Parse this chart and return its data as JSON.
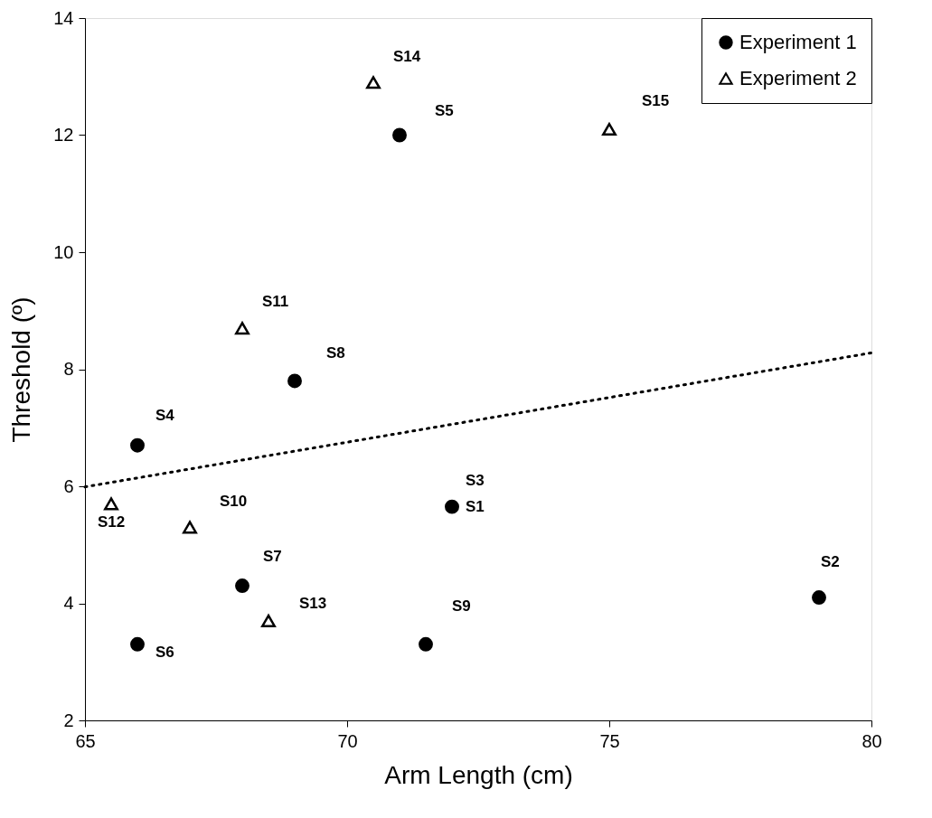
{
  "chart_data": {
    "type": "scatter",
    "xlabel": "Arm Length (cm)",
    "ylabel": "Threshold (º)",
    "xlim": [
      65,
      80
    ],
    "xticks": [
      65,
      70,
      75,
      80
    ],
    "ylim": [
      2,
      14
    ],
    "yticks": [
      2,
      4,
      6,
      8,
      10,
      12,
      14
    ],
    "grid": false,
    "legend": "top right",
    "series": [
      {
        "name": "Experiment 1",
        "color": "#000000",
        "marker": "circle",
        "x": [
          72,
          79,
          66,
          71,
          66,
          68,
          69,
          71.5
        ],
        "values": [
          5.65,
          4.1,
          6.7,
          12.0,
          3.3,
          4.3,
          7.8,
          3.3
        ]
      },
      {
        "name": "Experiment 2",
        "color": "#000000",
        "marker": "triangle",
        "x": [
          67,
          68,
          65.5,
          68.5,
          70.5,
          75
        ],
        "values": [
          5.3,
          8.7,
          5.7,
          3.7,
          12.9,
          12.1
        ]
      },
      {
        "type": "line",
        "color": "#000000",
        "line_style": "dotted",
        "x": [
          65,
          80
        ],
        "values": [
          5.99,
          8.28
        ]
      }
    ],
    "annotations": [
      {
        "text": "S1",
        "x": 72,
        "y": 5.65
      },
      {
        "text": "S2",
        "x": 79,
        "y": 4.1
      },
      {
        "text": "S3",
        "x": 72,
        "y": 5.65
      },
      {
        "text": "S4",
        "x": 66,
        "y": 6.7
      },
      {
        "text": "S5",
        "x": 71,
        "y": 12.0
      },
      {
        "text": "S6",
        "x": 66,
        "y": 3.3
      },
      {
        "text": "S7",
        "x": 68,
        "y": 4.3
      },
      {
        "text": "S8",
        "x": 69,
        "y": 7.8
      },
      {
        "text": "S9",
        "x": 71.5,
        "y": 3.3
      },
      {
        "text": "S10",
        "x": 67,
        "y": 5.3
      },
      {
        "text": "S11",
        "x": 68,
        "y": 8.7
      },
      {
        "text": "S12",
        "x": 65.5,
        "y": 5.7
      },
      {
        "text": "S13",
        "x": 68.5,
        "y": 3.7
      },
      {
        "text": "S14",
        "x": 70.5,
        "y": 12.9
      },
      {
        "text": "S15",
        "x": 75,
        "y": 12.1
      }
    ]
  }
}
